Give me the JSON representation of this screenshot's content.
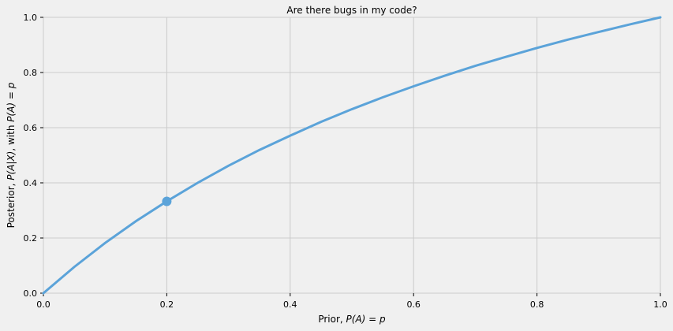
{
  "chart_data": {
    "type": "line",
    "title": "Are there bugs in my code?",
    "xlabel": {
      "prefix": "Prior, ",
      "expr": "P(A) = p"
    },
    "ylabel": {
      "prefix": "Posterior, ",
      "expr1": "P(A|X)",
      "mid": ", with ",
      "expr2": "P(A) = p"
    },
    "xlim": [
      0,
      1
    ],
    "ylim": [
      0,
      1
    ],
    "xticks": [
      "0.0",
      "0.2",
      "0.4",
      "0.6",
      "0.8",
      "1.0"
    ],
    "yticks": [
      "0.0",
      "0.2",
      "0.4",
      "0.6",
      "0.8",
      "1.0"
    ],
    "grid": true,
    "series": [
      {
        "x": [
          0.0,
          0.05,
          0.1,
          0.15,
          0.2,
          0.25,
          0.3,
          0.35,
          0.4,
          0.45,
          0.5,
          0.55,
          0.6,
          0.65,
          0.7,
          0.75,
          0.8,
          0.85,
          0.9,
          0.95,
          1.0
        ],
        "y": [
          0.0,
          0.095,
          0.182,
          0.261,
          0.333,
          0.4,
          0.462,
          0.519,
          0.571,
          0.621,
          0.667,
          0.71,
          0.75,
          0.788,
          0.824,
          0.857,
          0.889,
          0.919,
          0.947,
          0.974,
          1.0
        ]
      }
    ],
    "marker": {
      "x": 0.2,
      "y": 0.333
    },
    "color": "#5ba3d9"
  }
}
